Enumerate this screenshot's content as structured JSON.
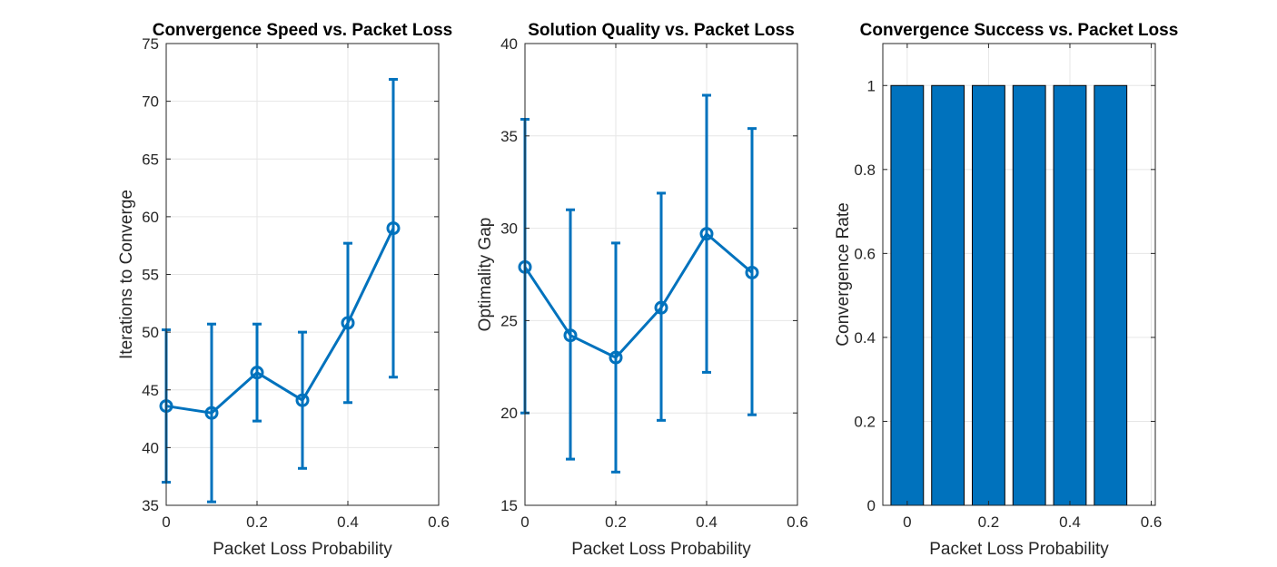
{
  "chart_data": [
    {
      "type": "line",
      "title": "Convergence Speed vs. Packet Loss",
      "xlabel": "Packet Loss Probability",
      "ylabel": "Iterations to Converge",
      "xlim": [
        0,
        0.6
      ],
      "ylim": [
        35,
        75
      ],
      "xticks": [
        "0",
        "0.2",
        "0.4",
        "0.6"
      ],
      "yticks": [
        "35",
        "40",
        "45",
        "50",
        "55",
        "60",
        "65",
        "70",
        "75"
      ],
      "grid": true,
      "color": "#0072bd",
      "x": [
        0,
        0.1,
        0.2,
        0.3,
        0.4,
        0.5
      ],
      "y": [
        43.6,
        43.0,
        46.5,
        44.1,
        50.8,
        59.0
      ],
      "y_lower": [
        37.0,
        35.3,
        42.3,
        38.2,
        43.9,
        46.1
      ],
      "y_upper": [
        50.2,
        50.7,
        50.7,
        50.0,
        57.7,
        71.9
      ]
    },
    {
      "type": "line",
      "title": "Solution Quality vs. Packet Loss",
      "xlabel": "Packet Loss Probability",
      "ylabel": "Optimality Gap",
      "xlim": [
        0,
        0.6
      ],
      "ylim": [
        15,
        40
      ],
      "xticks": [
        "0",
        "0.2",
        "0.4",
        "0.6"
      ],
      "yticks": [
        "15",
        "20",
        "25",
        "30",
        "35",
        "40"
      ],
      "grid": true,
      "color": "#0072bd",
      "x": [
        0,
        0.1,
        0.2,
        0.3,
        0.4,
        0.5
      ],
      "y": [
        27.9,
        24.2,
        23.0,
        25.7,
        29.7,
        27.6
      ],
      "y_lower": [
        20.0,
        17.5,
        16.8,
        19.6,
        22.2,
        19.9
      ],
      "y_upper": [
        35.9,
        31.0,
        29.2,
        31.9,
        37.2,
        35.4
      ]
    },
    {
      "type": "bar",
      "title": "Convergence Success vs. Packet Loss",
      "xlabel": "Packet Loss Probability",
      "ylabel": "Convergence Rate",
      "xlim": [
        -0.06,
        0.61
      ],
      "ylim": [
        0,
        1.1
      ],
      "xticks": [
        "0",
        "0.2",
        "0.4",
        "0.6"
      ],
      "yticks": [
        "0",
        "0.2",
        "0.4",
        "0.6",
        "0.8",
        "1"
      ],
      "grid": true,
      "color": "#0072bd",
      "x": [
        0,
        0.1,
        0.2,
        0.3,
        0.4,
        0.5
      ],
      "values": [
        1,
        1,
        1,
        1,
        1,
        1
      ]
    }
  ]
}
